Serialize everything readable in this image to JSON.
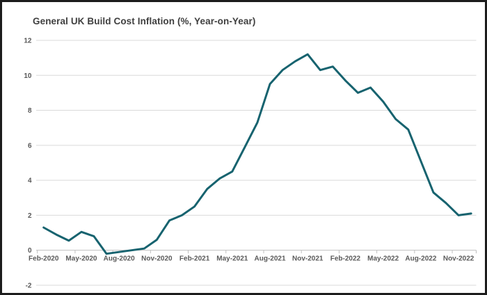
{
  "title": "General UK Build Cost Inflation (%, Year-on-Year)",
  "chart_data": {
    "type": "line",
    "title": "General UK Build Cost Inflation (%, Year-on-Year)",
    "x": [
      "Feb-2020",
      "Mar-2020",
      "Apr-2020",
      "May-2020",
      "Jun-2020",
      "Jul-2020",
      "Aug-2020",
      "Sep-2020",
      "Oct-2020",
      "Nov-2020",
      "Dec-2020",
      "Jan-2021",
      "Feb-2021",
      "Mar-2021",
      "Apr-2021",
      "May-2021",
      "Jun-2021",
      "Jul-2021",
      "Aug-2021",
      "Sep-2021",
      "Oct-2021",
      "Nov-2021",
      "Dec-2021",
      "Jan-2022",
      "Feb-2022",
      "Mar-2022",
      "Apr-2022",
      "May-2022",
      "Jun-2022",
      "Jul-2022",
      "Aug-2022",
      "Sep-2022",
      "Oct-2022",
      "Nov-2022",
      "Dec-2022"
    ],
    "values": [
      1.3,
      0.9,
      0.55,
      1.05,
      0.8,
      -0.2,
      -0.1,
      0.0,
      0.1,
      0.6,
      1.7,
      2.0,
      2.5,
      3.5,
      4.1,
      4.5,
      5.9,
      7.3,
      9.5,
      10.3,
      10.8,
      11.2,
      10.3,
      10.5,
      9.7,
      9.0,
      9.3,
      8.5,
      7.5,
      6.9,
      5.1,
      3.3,
      2.7,
      2.0,
      2.1
    ],
    "visible_x_tick_labels": [
      "Feb-2020",
      "May-2020",
      "Aug-2020",
      "Nov-2020",
      "Feb-2021",
      "May-2021",
      "Aug-2021",
      "Nov-2021",
      "Feb-2022",
      "May-2022",
      "Aug-2022",
      "Nov-2022"
    ],
    "x_label_interval": 3,
    "y_ticks": [
      12,
      10,
      8,
      6,
      4,
      2,
      0,
      -2
    ],
    "ylim": [
      -2,
      12
    ],
    "xlabel": "",
    "ylabel": "",
    "grid": "horizontal",
    "legend": "none",
    "series_name": "General UK Build Cost Inflation (%, Year-on-Year)"
  },
  "colors": {
    "series_line": "#17636F",
    "gridline": "#D9D9D9",
    "axis_line": "#BFBFBF",
    "axis_label": "#595959",
    "title_text": "#3F3F3F",
    "frame_border": "#1C1C1C",
    "background": "#FFFFFF"
  }
}
